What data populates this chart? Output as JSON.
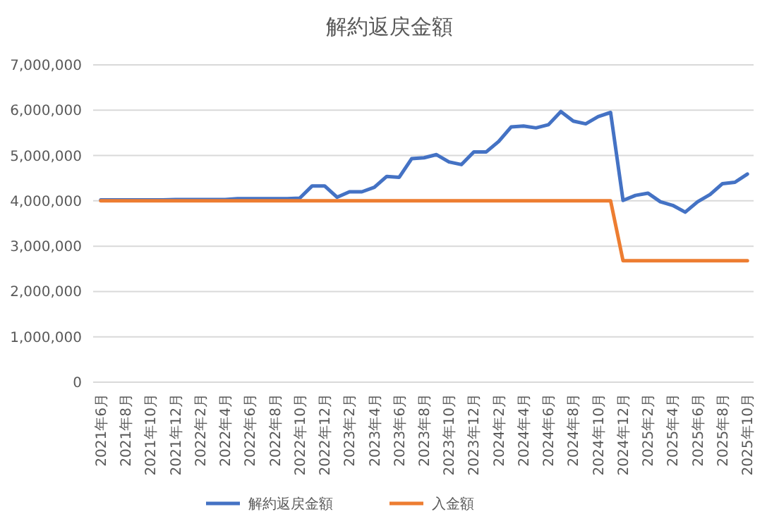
{
  "chart_data": {
    "type": "line",
    "title": "解約返戻金額",
    "categories": [
      "2021年6月",
      null,
      "2021年8月",
      null,
      "2021年10月",
      null,
      "2021年12月",
      null,
      "2022年2月",
      null,
      "2022年4月",
      null,
      "2022年6月",
      null,
      "2022年8月",
      null,
      "2022年10月",
      null,
      "2022年12月",
      null,
      "2023年2月",
      null,
      "2023年4月",
      null,
      "2023年6月",
      null,
      "2023年8月",
      null,
      "2023年10月",
      null,
      "2023年12月",
      null,
      "2024年2月",
      null,
      "2024年4月",
      null,
      "2024年6月",
      null,
      "2024年8月",
      null,
      "2024年10月",
      null,
      "2024年12月",
      null,
      "2025年2月",
      null,
      "2025年4月",
      null,
      "2025年6月",
      null,
      "2025年8月",
      null,
      "2025年10月"
    ],
    "series": [
      {
        "name": "解約返戻金額",
        "color": "#4472c4",
        "values": [
          4020000,
          4020000,
          4020000,
          4020000,
          4020000,
          4020000,
          4030000,
          4030000,
          4030000,
          4030000,
          4030000,
          4050000,
          4050000,
          4050000,
          4050000,
          4050000,
          4060000,
          4330000,
          4330000,
          4080000,
          4200000,
          4200000,
          4300000,
          4540000,
          4520000,
          4930000,
          4950000,
          5020000,
          4860000,
          4800000,
          5080000,
          5080000,
          5310000,
          5630000,
          5650000,
          5610000,
          5680000,
          5970000,
          5760000,
          5700000,
          5860000,
          5950000,
          4010000,
          4120000,
          4170000,
          3980000,
          3900000,
          3750000,
          3980000,
          4140000,
          4380000,
          4410000,
          4590000
        ]
      },
      {
        "name": "入金額",
        "color": "#ed7d31",
        "values": [
          4000000,
          4000000,
          4000000,
          4000000,
          4000000,
          4000000,
          4000000,
          4000000,
          4000000,
          4000000,
          4000000,
          4000000,
          4000000,
          4000000,
          4000000,
          4000000,
          4000000,
          4000000,
          4000000,
          4000000,
          4000000,
          4000000,
          4000000,
          4000000,
          4000000,
          4000000,
          4000000,
          4000000,
          4000000,
          4000000,
          4000000,
          4000000,
          4000000,
          4000000,
          4000000,
          4000000,
          4000000,
          4000000,
          4000000,
          4000000,
          4000000,
          4000000,
          2680000,
          2680000,
          2680000,
          2680000,
          2680000,
          2680000,
          2680000,
          2680000,
          2680000,
          2680000,
          2680000
        ]
      }
    ],
    "ylim": [
      0,
      7000000
    ],
    "yticks": [
      {
        "value": 0,
        "label": "0"
      },
      {
        "value": 1000000,
        "label": "1,000,000"
      },
      {
        "value": 2000000,
        "label": "2,000,000"
      },
      {
        "value": 3000000,
        "label": "3,000,000"
      },
      {
        "value": 4000000,
        "label": "4,000,000"
      },
      {
        "value": 5000000,
        "label": "5,000,000"
      },
      {
        "value": 6000000,
        "label": "6,000,000"
      },
      {
        "value": 7000000,
        "label": "7,000,000"
      }
    ],
    "grid": "y",
    "legend": "bottom",
    "marker": "none",
    "line_style": "solid"
  }
}
